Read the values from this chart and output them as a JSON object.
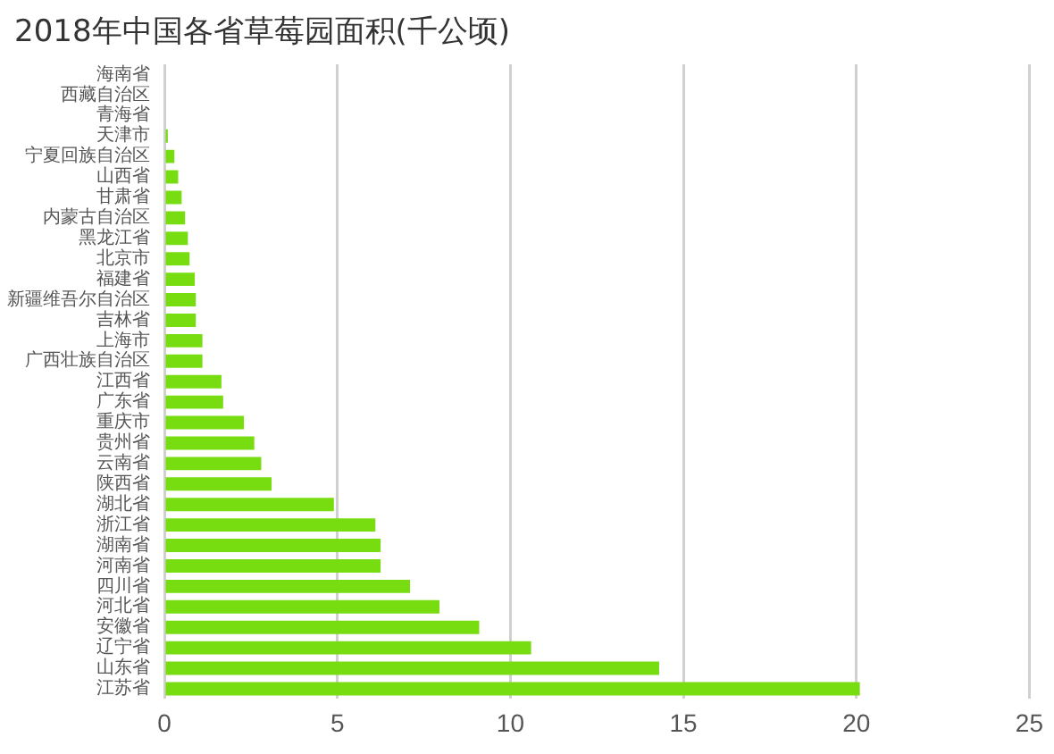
{
  "chart_data": {
    "type": "bar",
    "orientation": "horizontal",
    "title": "2018年中国各省草莓园面积(千公顷)",
    "categories": [
      "海南省",
      "西藏自治区",
      "青海省",
      "天津市",
      "宁夏回族自治区",
      "山西省",
      "甘肃省",
      "内蒙古自治区",
      "黑龙江省",
      "北京市",
      "福建省",
      "新疆维吾尔自治区",
      "吉林省",
      "上海市",
      "广西壮族自治区",
      "江西省",
      "广东省",
      "重庆市",
      "贵州省",
      "云南省",
      "陕西省",
      "湖北省",
      "浙江省",
      "湖南省",
      "河南省",
      "四川省",
      "河北省",
      "安徽省",
      "辽宁省",
      "山东省",
      "江苏省"
    ],
    "values": [
      0,
      0,
      null,
      0.1,
      0.29,
      0.4,
      0.5,
      0.6,
      0.68,
      0.73,
      0.88,
      0.91,
      0.91,
      1.1,
      1.1,
      1.65,
      1.7,
      2.3,
      2.6,
      2.8,
      3.1,
      4.9,
      6.1,
      6.25,
      6.25,
      7.1,
      7.95,
      9.1,
      10.6,
      14.3,
      20.1
    ],
    "color": "#77dd11",
    "xlim": [
      0,
      25
    ],
    "xticks": [
      0,
      5,
      10,
      15,
      20,
      25
    ],
    "grid": "x",
    "legend": false
  }
}
